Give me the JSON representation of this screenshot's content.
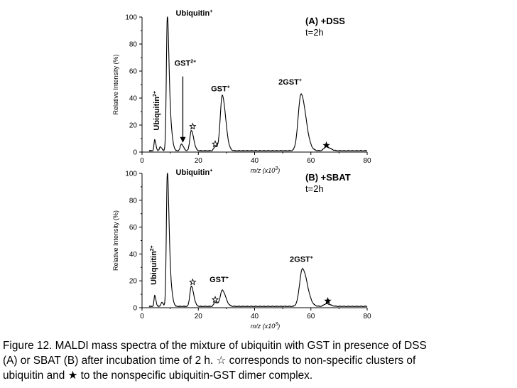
{
  "chart_data": [
    {
      "type": "line",
      "panel_label": "(A) +DSS",
      "time_label": "t=2h",
      "xlabel": "m/z (x10",
      "xlabel_exp": "3",
      "xlabel_close": ")",
      "ylabel": "Relative Intensity (%)",
      "xlim": [
        0,
        80
      ],
      "ylim": [
        0,
        100
      ],
      "xticks": [
        0,
        20,
        40,
        60,
        80
      ],
      "yticks": [
        0,
        20,
        40,
        60,
        80,
        100
      ],
      "peaks": [
        {
          "x": 4.5,
          "y": 8,
          "w": 0.25
        },
        {
          "x": 6.5,
          "y": 3,
          "w": 0.3
        },
        {
          "x": 9.0,
          "y": 100,
          "w": 0.35
        },
        {
          "x": 10.2,
          "y": 14,
          "w": 0.4
        },
        {
          "x": 14.0,
          "y": 5,
          "w": 0.4
        },
        {
          "x": 17.5,
          "y": 15,
          "w": 0.5
        },
        {
          "x": 26.0,
          "y": 3,
          "w": 0.5
        },
        {
          "x": 28.5,
          "y": 41,
          "w": 0.7
        },
        {
          "x": 56.5,
          "y": 42,
          "w": 1.0
        },
        {
          "x": 65.5,
          "y": 3,
          "w": 0.8
        }
      ],
      "annotations": [
        {
          "label": "Ubiquitin",
          "sup": "+",
          "x": 12,
          "y": 101
        },
        {
          "label": "GST",
          "sup": "2+",
          "x": 11.5,
          "y": 64
        },
        {
          "label": "GST",
          "sup": "+",
          "x": 24.5,
          "y": 45
        },
        {
          "label": "2GST",
          "sup": "+",
          "x": 48.5,
          "y": 50
        }
      ],
      "rotated_annotation": {
        "label": "Ubiquitin",
        "sup": "2+",
        "x": 6,
        "y": 16
      },
      "open_stars": [
        {
          "x": 18,
          "y": 19
        },
        {
          "x": 26,
          "y": 6
        }
      ],
      "filled_stars": [
        {
          "x": 65.5,
          "y": 5
        }
      ],
      "arrow": {
        "x": 14.5,
        "from_y": 56,
        "to_y": 7
      }
    },
    {
      "type": "line",
      "panel_label": "(B) +SBAT",
      "time_label": "t=2h",
      "xlabel": "m/z (x10",
      "xlabel_exp": "3",
      "xlabel_close": ")",
      "ylabel": "Relative Intensity (%)",
      "xlim": [
        0,
        80
      ],
      "ylim": [
        0,
        100
      ],
      "xticks": [
        0,
        20,
        40,
        60,
        80
      ],
      "yticks": [
        0,
        20,
        40,
        60,
        80,
        100
      ],
      "peaks": [
        {
          "x": 4.5,
          "y": 8,
          "w": 0.25
        },
        {
          "x": 7.0,
          "y": 3,
          "w": 0.3
        },
        {
          "x": 9.0,
          "y": 100,
          "w": 0.35
        },
        {
          "x": 10.2,
          "y": 12,
          "w": 0.4
        },
        {
          "x": 17.5,
          "y": 15,
          "w": 0.5
        },
        {
          "x": 26.0,
          "y": 3,
          "w": 0.5
        },
        {
          "x": 28.5,
          "y": 12,
          "w": 0.7
        },
        {
          "x": 57.0,
          "y": 28,
          "w": 1.0
        },
        {
          "x": 65.5,
          "y": 2,
          "w": 0.8
        }
      ],
      "annotations": [
        {
          "label": "Ubiquitin",
          "sup": "+",
          "x": 12,
          "y": 99
        },
        {
          "label": "GST",
          "sup": "+",
          "x": 24,
          "y": 19
        },
        {
          "label": "2GST",
          "sup": "+",
          "x": 52.5,
          "y": 34
        }
      ],
      "rotated_annotation": {
        "label": "Ubiquitin",
        "sup": "2+",
        "x": 5,
        "y": 17
      },
      "open_stars": [
        {
          "x": 18,
          "y": 19
        },
        {
          "x": 26,
          "y": 6
        }
      ],
      "filled_stars": [
        {
          "x": 66,
          "y": 5
        }
      ],
      "arrow": null
    }
  ],
  "caption": {
    "line1": "Figure 12. MALDI mass spectra of the mixture of ubiquitin with GST in presence of DSS",
    "line2_pre": "(A) or SBAT (B) after incubation time of 2 h. ",
    "line2_star": "☆",
    "line2_post": " corresponds to non-specific clusters of",
    "line3_pre": "ubiquitin and ",
    "line3_star": "★",
    "line3_post": " to the nonspecific ubiquitin-GST dimer complex."
  }
}
